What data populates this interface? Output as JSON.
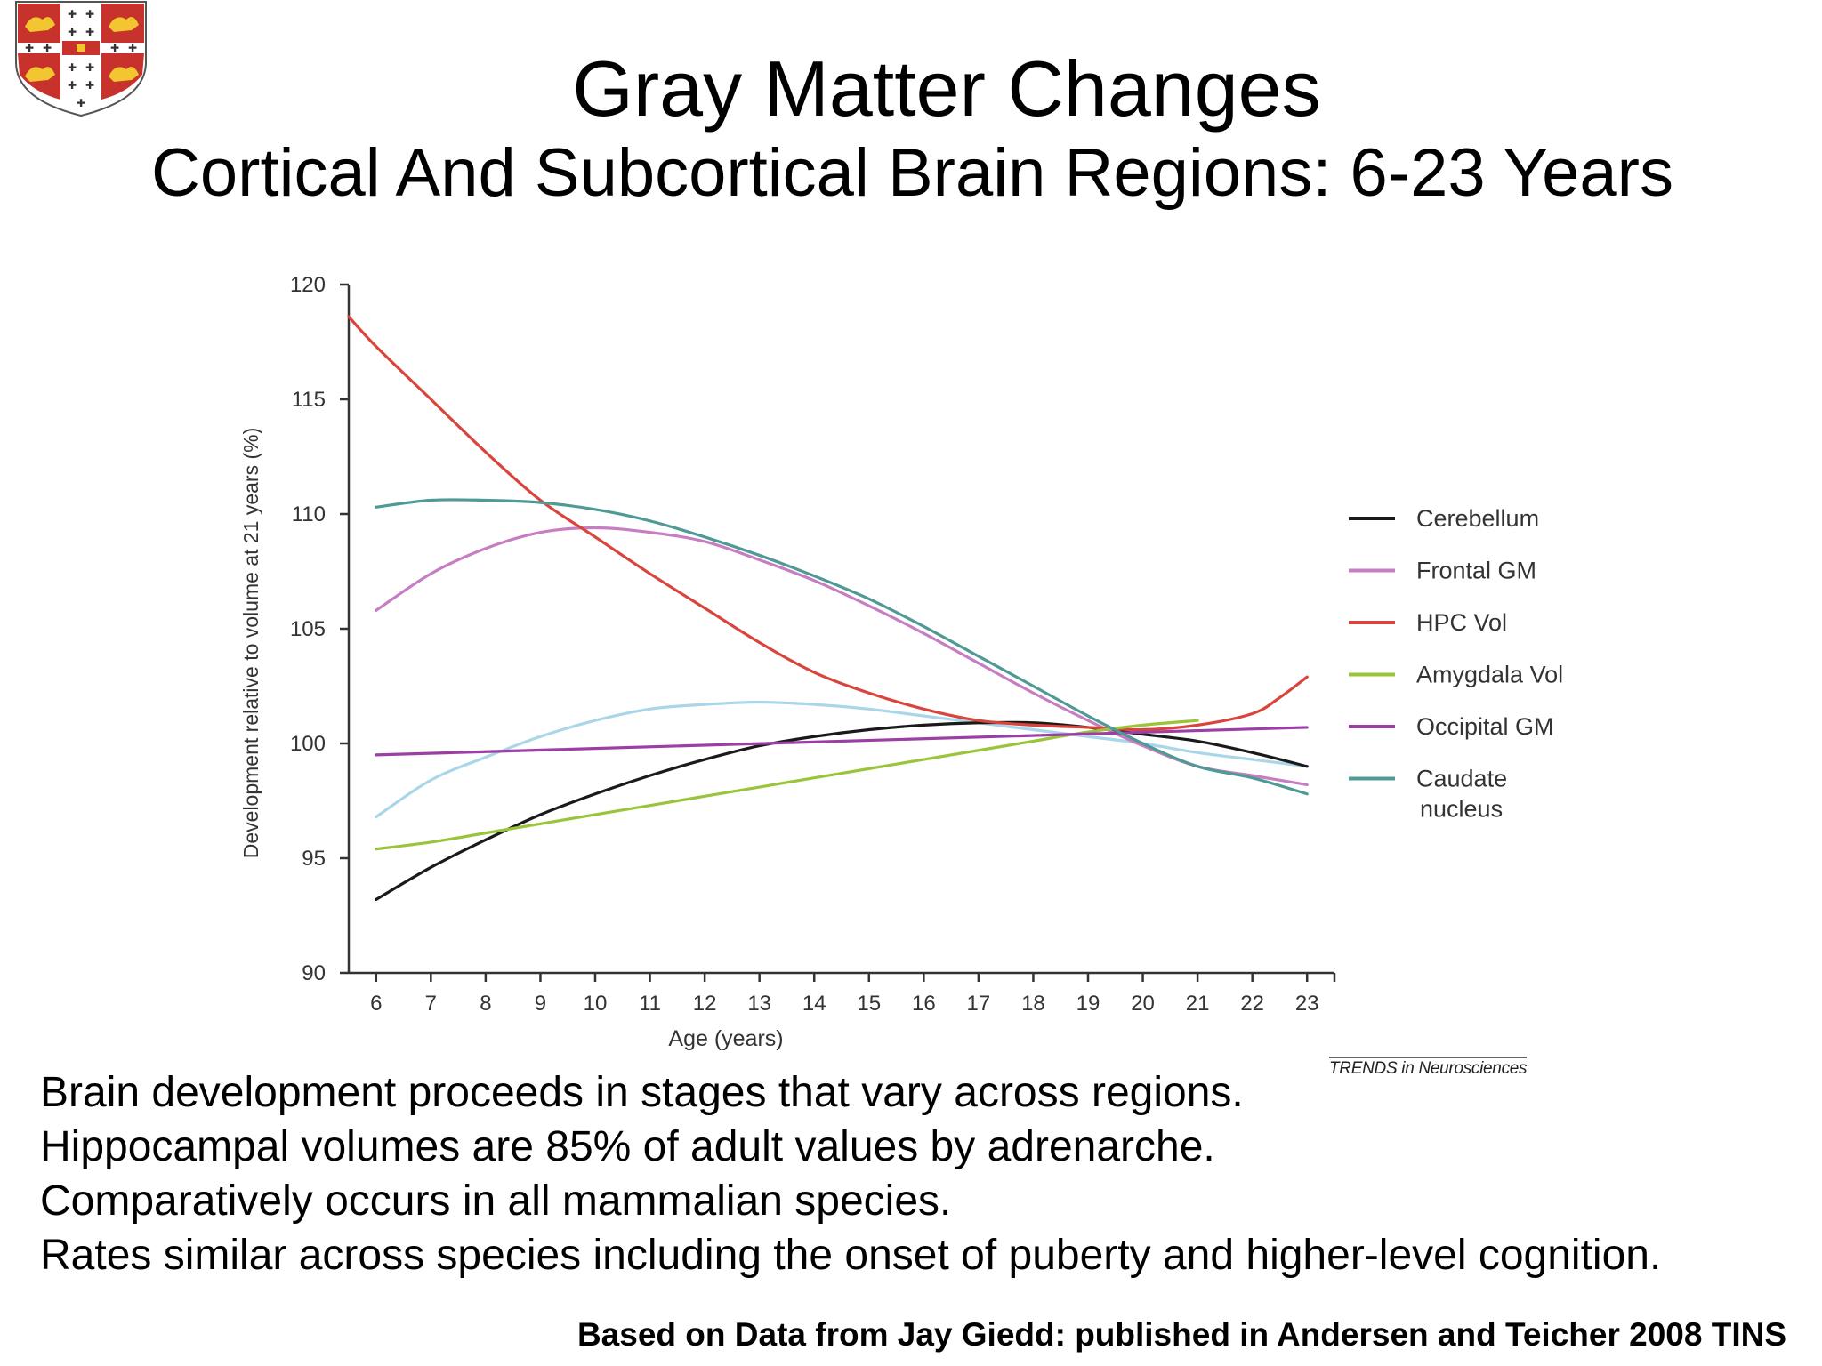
{
  "slide": {
    "title": "Gray Matter Changes",
    "subtitle": "Cortical And Subcortical Brain Regions: 6-23 Years",
    "bullets": [
      "Brain development proceeds in stages that vary across regions.",
      "Hippocampal volumes are 85% of adult values by adrenarche.",
      "Comparatively occurs in all mammalian species.",
      "Rates similar across species including the onset of puberty and higher-level cognition."
    ],
    "citation": "Based on Data from Jay Giedd:  published in Andersen and Teicher 2008 TINS",
    "source_credit": "TRENDS in Neurosciences"
  },
  "chart_data": {
    "type": "line",
    "xlabel": "Age (years)",
    "ylabel": "Development relative to volume at 21 years (%)",
    "x_ticks": [
      6,
      7,
      8,
      9,
      10,
      11,
      12,
      13,
      14,
      15,
      16,
      17,
      18,
      19,
      20,
      21,
      22,
      23
    ],
    "y_ticks": [
      90,
      95,
      100,
      105,
      110,
      115,
      120
    ],
    "xlim": [
      5.5,
      23.5
    ],
    "ylim": [
      90,
      120
    ],
    "grid": false,
    "legend_position": "right",
    "series": [
      {
        "name": "Cerebellum",
        "color": "#1a1a1a",
        "x": [
          6,
          7,
          8,
          9,
          10,
          11,
          12,
          13,
          14,
          15,
          16,
          17,
          18,
          19,
          20,
          21,
          22,
          23
        ],
        "y": [
          93.2,
          94.6,
          95.8,
          96.9,
          97.8,
          98.6,
          99.3,
          99.9,
          100.3,
          100.6,
          100.8,
          100.9,
          100.9,
          100.7,
          100.4,
          100.1,
          99.6,
          99.0
        ]
      },
      {
        "name": "Frontal GM",
        "color": "#c77dc2",
        "x": [
          6,
          7,
          8,
          9,
          10,
          11,
          12,
          13,
          14,
          15,
          16,
          17,
          18,
          19,
          20,
          21,
          22,
          23
        ],
        "y": [
          105.8,
          107.4,
          108.5,
          109.2,
          109.4,
          109.2,
          108.8,
          108.0,
          107.1,
          106.0,
          104.8,
          103.5,
          102.2,
          101.0,
          99.9,
          99.0,
          98.6,
          98.2
        ]
      },
      {
        "name": "HPC Vol",
        "color": "#d9453c",
        "x": [
          5.5,
          6,
          7,
          8,
          9,
          10,
          11,
          12,
          13,
          14,
          15,
          16,
          17,
          18,
          19,
          20,
          21,
          22,
          22.5,
          23
        ],
        "y": [
          118.6,
          117.3,
          115.0,
          112.7,
          110.6,
          109.0,
          107.4,
          105.9,
          104.4,
          103.1,
          102.2,
          101.5,
          101.0,
          100.8,
          100.7,
          100.6,
          100.8,
          101.3,
          102.0,
          102.9
        ]
      },
      {
        "name": "Amygdala Vol",
        "color": "#9ac43a",
        "x": [
          6,
          7,
          8,
          9,
          10,
          11,
          12,
          13,
          14,
          15,
          16,
          17,
          18,
          19,
          20,
          21
        ],
        "y": [
          95.4,
          95.7,
          96.1,
          96.5,
          96.9,
          97.3,
          97.7,
          98.1,
          98.5,
          98.9,
          99.3,
          99.7,
          100.1,
          100.5,
          100.8,
          101.0
        ]
      },
      {
        "name": "Occipital GM",
        "color": "#9b3fa6",
        "x": [
          6,
          23
        ],
        "y": [
          99.5,
          100.7
        ]
      },
      {
        "name": "Caudate nucleus",
        "color": "#4f9a95",
        "x": [
          6,
          7,
          8,
          9,
          10,
          11,
          12,
          13,
          14,
          15,
          16,
          17,
          18,
          19,
          20,
          21,
          22,
          23
        ],
        "y": [
          110.3,
          110.6,
          110.6,
          110.5,
          110.2,
          109.7,
          109.0,
          108.2,
          107.3,
          106.3,
          105.1,
          103.8,
          102.5,
          101.2,
          100.0,
          99.0,
          98.5,
          97.8
        ]
      },
      {
        "color": "#a9d6e8",
        "x": [
          6,
          7,
          8,
          9,
          10,
          11,
          12,
          13,
          14,
          15,
          16,
          17,
          18,
          19,
          20,
          21,
          22,
          23
        ],
        "y": [
          96.8,
          98.4,
          99.4,
          100.3,
          101.0,
          101.5,
          101.7,
          101.8,
          101.7,
          101.5,
          101.2,
          100.9,
          100.6,
          100.3,
          100.0,
          99.6,
          99.3,
          99.0
        ]
      }
    ]
  }
}
